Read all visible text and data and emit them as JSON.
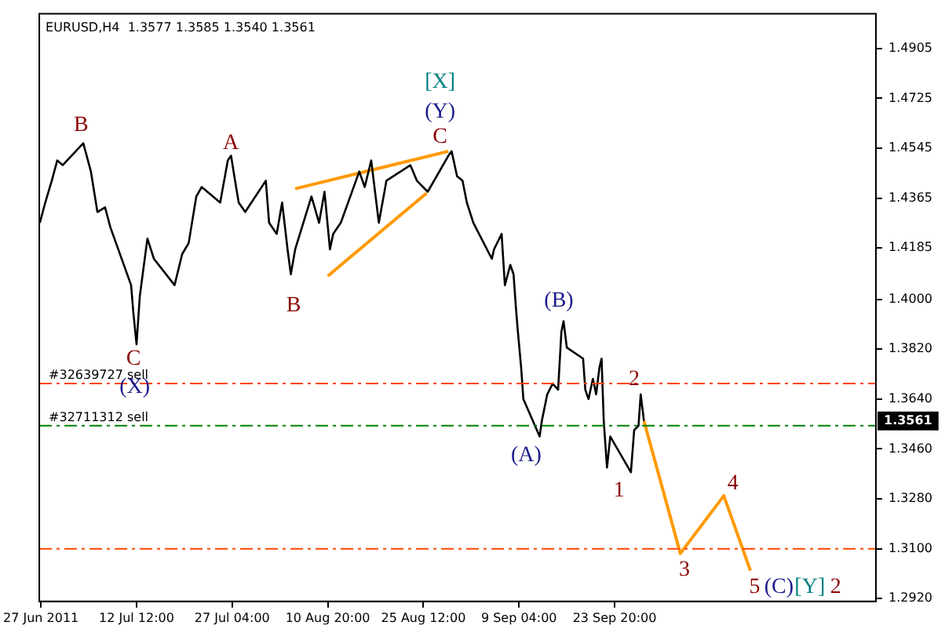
{
  "chart_data": {
    "type": "line",
    "title": "EURUSD,H4  1.3577 1.3585 1.3540 1.3561",
    "series": [
      {
        "color": "#000000",
        "x": [
          "2011-06-27T16:00",
          "2011-06-28T12:00",
          "2011-06-29T12:00",
          "2011-06-30T08:00",
          "2011-07-01T04:00",
          "2011-07-04T08:00",
          "2011-07-05T12:00",
          "2011-07-06T12:00",
          "2011-07-07T16:00",
          "2011-07-08T12:00",
          "2011-07-11T16:00",
          "2011-07-12T00:00",
          "2011-07-12T12:00",
          "2011-07-13T00:00",
          "2011-07-14T04:00",
          "2011-07-15T04:00",
          "2011-07-18T08:00",
          "2011-07-19T12:00",
          "2011-07-20T12:00",
          "2011-07-21T16:00",
          "2011-07-22T12:00",
          "2011-07-25T08:00",
          "2011-07-26T12:00",
          "2011-07-27T00:00",
          "2011-07-27T12:00",
          "2011-07-28T04:00",
          "2011-07-29T04:00",
          "2011-08-01T08:00",
          "2011-08-01T20:00",
          "2011-08-03T00:00",
          "2011-08-03T20:00",
          "2011-08-04T16:00",
          "2011-08-05T04:00",
          "2011-08-05T20:00",
          "2011-08-08T08:00",
          "2011-08-09T12:00",
          "2011-08-10T08:00",
          "2011-08-11T04:00",
          "2011-08-11T16:00",
          "2011-08-12T20:00",
          "2011-08-15T16:00",
          "2011-08-16T12:00",
          "2011-08-17T12:00",
          "2011-08-18T16:00",
          "2011-08-19T20:00",
          "2011-08-23T12:00",
          "2011-08-24T12:00",
          "2011-08-26T04:00",
          "2011-08-29T08:00",
          "2011-08-29T20:00",
          "2011-08-30T16:00",
          "2011-08-31T12:00",
          "2011-09-01T04:00",
          "2011-09-02T04:00",
          "2011-09-05T00:00",
          "2011-09-05T08:00",
          "2011-09-06T12:00",
          "2011-09-07T00:00",
          "2011-09-07T20:00",
          "2011-09-08T08:00",
          "2011-09-08T16:00",
          "2011-09-09T00:00",
          "2011-09-09T12:00",
          "2011-09-09T20:00",
          "2011-09-12T08:00",
          "2011-09-12T16:00",
          "2011-09-13T12:00",
          "2011-09-14T08:00",
          "2011-09-15T04:00",
          "2011-09-15T16:00",
          "2011-09-16T00:00",
          "2011-09-16T12:00",
          "2011-09-19T00:00",
          "2011-09-19T08:00",
          "2011-09-19T20:00",
          "2011-09-20T12:00",
          "2011-09-21T00:00",
          "2011-09-21T12:00",
          "2011-09-21T20:00",
          "2011-09-22T04:00",
          "2011-09-22T16:00",
          "2011-09-23T04:00",
          "2011-09-26T08:00",
          "2011-09-26T20:00",
          "2011-09-27T12:00",
          "2011-09-27T20:00",
          "2011-09-28T08:00"
        ],
        "values": [
          1.4276,
          1.4349,
          1.4428,
          1.4501,
          1.4484,
          1.4563,
          1.4461,
          1.4315,
          1.4332,
          1.4259,
          1.4051,
          1.3955,
          1.3837,
          1.4011,
          1.4219,
          1.4146,
          1.4051,
          1.4163,
          1.4203,
          1.4371,
          1.4405,
          1.4349,
          1.4501,
          1.4518,
          1.4444,
          1.4349,
          1.4315,
          1.4428,
          1.4276,
          1.4236,
          1.4349,
          1.418,
          1.409,
          1.418,
          1.4371,
          1.4276,
          1.4388,
          1.418,
          1.4236,
          1.4276,
          1.4461,
          1.4405,
          1.4501,
          1.4276,
          1.4428,
          1.4484,
          1.4428,
          1.4388,
          1.4518,
          1.4534,
          1.4444,
          1.4428,
          1.4349,
          1.4276,
          1.4146,
          1.418,
          1.4236,
          1.4051,
          1.4124,
          1.409,
          1.3978,
          1.3882,
          1.3753,
          1.364,
          1.3505,
          1.3561,
          1.3657,
          1.3696,
          1.3674,
          1.3882,
          1.3921,
          1.3826,
          1.3786,
          1.3674,
          1.364,
          1.3713,
          1.3657,
          1.3753,
          1.3786,
          1.3561,
          1.3393,
          1.3505,
          1.3376,
          1.3528,
          1.3544,
          1.3657,
          1.3561
        ]
      },
      {
        "color": "#ff9900",
        "x": [
          "2011-09-28T08:00",
          "2011-10-03T22:00",
          "2011-10-10T14:00",
          "2011-10-14T16:00"
        ],
        "values": [
          1.3561,
          1.3083,
          1.3291,
          1.3021
        ]
      },
      {
        "color": "#ff9900",
        "x": [
          "2011-08-05T20:00",
          "2011-08-29T08:00"
        ],
        "values": [
          1.4399,
          1.4534
        ]
      },
      {
        "color": "#ff9900",
        "x": [
          "2011-08-10T20:00",
          "2011-08-26T00:00"
        ],
        "values": [
          1.4084,
          1.4383
        ]
      }
    ],
    "xlim": [
      "2011-06-27T14:00",
      "2011-11-02T22:00"
    ],
    "xticks": [
      {
        "value": "2011-06-27T20:00",
        "label": "27 Jun 2011"
      },
      {
        "value": "2011-07-12T12:00",
        "label": "12 Jul 12:00"
      },
      {
        "value": "2011-07-27T04:00",
        "label": "27 Jul 04:00"
      },
      {
        "value": "2011-08-10T20:00",
        "label": "10 Aug 20:00"
      },
      {
        "value": "2011-08-25T12:00",
        "label": "25 Aug 12:00"
      },
      {
        "value": "2011-09-09T04:00",
        "label": "9 Sep 04:00"
      },
      {
        "value": "2011-09-23T20:00",
        "label": "23 Sep 20:00"
      }
    ],
    "ylim": [
      1.291,
      1.503
    ],
    "yticks": [
      {
        "value": 1.292,
        "label": "1.2920"
      },
      {
        "value": 1.31,
        "label": "1.3100"
      },
      {
        "value": 1.328,
        "label": "1.3280"
      },
      {
        "value": 1.346,
        "label": "1.3460"
      },
      {
        "value": 1.364,
        "label": "1.3640"
      },
      {
        "value": 1.382,
        "label": "1.3820"
      },
      {
        "value": 1.4,
        "label": "1.4000"
      },
      {
        "value": 1.4185,
        "label": "1.4185"
      },
      {
        "value": 1.4365,
        "label": "1.4365"
      },
      {
        "value": 1.4545,
        "label": "1.4545"
      },
      {
        "value": 1.4725,
        "label": "1.4725"
      },
      {
        "value": 1.4905,
        "label": "1.4905"
      }
    ],
    "ref_lines": [
      {
        "axis": "y",
        "value": 1.3696,
        "label": "#32639727 sell",
        "color": "#ff4500",
        "line_style": "dashed"
      },
      {
        "axis": "y",
        "value": 1.3544,
        "label": "#32711312 sell",
        "color": "#008000",
        "line_style": "dashed"
      },
      {
        "axis": "y",
        "value": 1.31,
        "label": null,
        "color": "#ff4500",
        "line_style": "dashed"
      }
    ],
    "annotations": [
      "B",
      "C",
      "(X)",
      "A",
      "B",
      "[X]",
      "(Y)",
      "C",
      "(B)",
      "(A)",
      "2",
      "1",
      "3",
      "4",
      "5",
      "(C)",
      "[Y]",
      "2",
      "1.3561"
    ],
    "grid": false,
    "legend": false,
    "marker": "none",
    "line_style": "solid"
  }
}
